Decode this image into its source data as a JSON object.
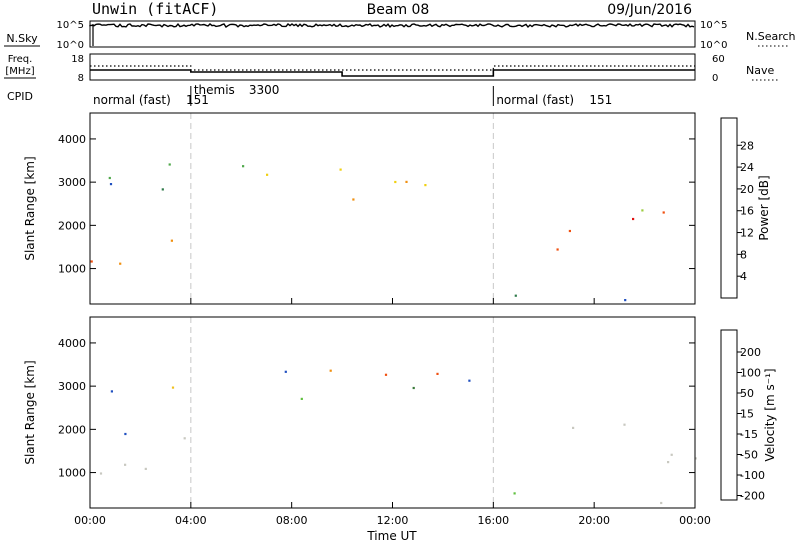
{
  "header": {
    "title": "Unwin (fitACF)",
    "beam": "Beam 08",
    "date": "09/Jun/2016"
  },
  "meta_panels": {
    "nsky_label": "N.Sky",
    "nsky_ticks": [
      "10^5",
      "10^0"
    ],
    "nsearch_label": "N.Search",
    "nsearch_ticks": [
      "10^5",
      "10^0"
    ],
    "freq_label_1": "Freq.",
    "freq_label_2": "[MHz]",
    "freq_ticks": [
      "18",
      "8"
    ],
    "nave_label": "Nave",
    "nave_ticks": [
      "60",
      "0"
    ],
    "cpid_label": "CPID",
    "cpid_segments": [
      {
        "label": "normal (fast)",
        "code": "151",
        "start_h": 0,
        "end_h": 4
      },
      {
        "label": "themis",
        "code": "3300",
        "start_h": 4,
        "end_h": 16
      },
      {
        "label": "normal (fast)",
        "code": "151",
        "start_h": 16,
        "end_h": 24
      }
    ]
  },
  "colors": {
    "power_scale": [
      "#1020e0",
      "#2050c0",
      "#2f7a4a",
      "#4fa84a",
      "#9ccc40",
      "#f0d010",
      "#f09010",
      "#f05010",
      "#e01010"
    ],
    "velocity_scale": [
      "#e01010",
      "#f05010",
      "#f09010",
      "#f0c020",
      "#c8c8c0",
      "#c8c8c0",
      "#60c040",
      "#3a7a3a",
      "#2050c0",
      "#1020b0"
    ],
    "ground_scatter": "#c8c8c0",
    "axis": "#000000",
    "cpid_divider": "#c8c8c8"
  },
  "chart_data": {
    "type": "heatmap",
    "x_axis": {
      "label": "Time UT",
      "range_hours": [
        0,
        24
      ],
      "ticks": [
        "00:00",
        "04:00",
        "08:00",
        "12:00",
        "16:00",
        "20:00",
        "00:00"
      ]
    },
    "y_axis": {
      "label": "Slant Range [km]",
      "range_km": [
        180,
        4600
      ],
      "ticks": [
        "1000",
        "2000",
        "3000",
        "4000"
      ]
    },
    "power_panel": {
      "colorbar_label": "Power [dB]",
      "colorbar_ticks": [
        "4",
        "8",
        "12",
        "16",
        "20",
        "24",
        "28"
      ],
      "range_db": [
        0,
        33
      ]
    },
    "velocity_panel": {
      "colorbar_label": "Velocity [m s⁻¹]",
      "colorbar_ticks": [
        "200",
        "100",
        "50",
        "15",
        "-15",
        "-50",
        "-100",
        "-200"
      ]
    },
    "echo_regions": [
      {
        "name": "early-ground-scatter",
        "t": [
          0,
          4
        ],
        "r": [
          500,
          1900
        ],
        "power_db": [
          12,
          30
        ],
        "ground_scatter": true
      },
      {
        "name": "early-ionospheric",
        "t": [
          0,
          4
        ],
        "r": [
          1800,
          3500
        ],
        "power_db": [
          4,
          14
        ],
        "ground_scatter": false
      },
      {
        "name": "themis-far-range",
        "t": [
          4,
          16
        ],
        "r": [
          2550,
          3500
        ],
        "power_db": [
          8,
          28
        ],
        "ground_scatter": false
      },
      {
        "name": "evening-near-range",
        "t": [
          16,
          24
        ],
        "r": [
          180,
          600
        ],
        "power_db": [
          4,
          14
        ],
        "ground_scatter": false
      },
      {
        "name": "evening-ground-scatter",
        "t": [
          18,
          24
        ],
        "r": [
          1200,
          2500
        ],
        "power_db": [
          10,
          30
        ],
        "ground_scatter": true
      }
    ]
  }
}
